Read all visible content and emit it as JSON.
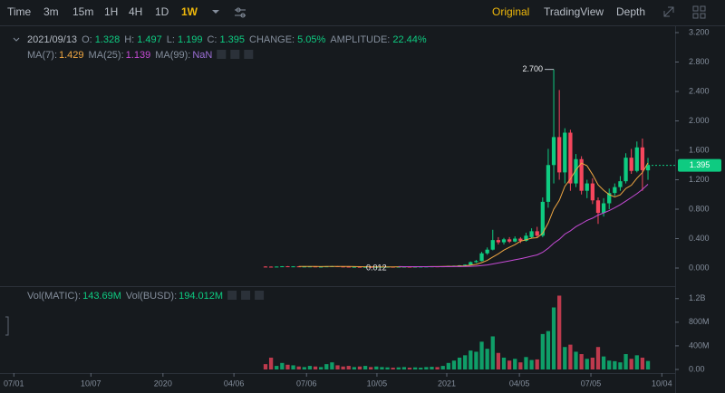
{
  "toolbar": {
    "intervals": [
      "Time",
      "3m",
      "15m",
      "1H",
      "4H",
      "1D",
      "1W"
    ],
    "views": [
      "Original",
      "TradingView",
      "Depth"
    ]
  },
  "chart_data": {
    "type": "candlestick",
    "header": {
      "date": "2021/09/13",
      "open_label": "O:",
      "high_label": "H:",
      "low_label": "L:",
      "close_label": "C:",
      "change_label": "CHANGE:",
      "change": "5.05%",
      "amplitude_label": "AMPLITUDE:",
      "amplitude": "22.44%"
    },
    "up_color": "#0ecb81",
    "down_color": "#f6465d",
    "xlim": [
      -47.9,
      73.9
    ],
    "xticks": [
      {
        "value": -45.4,
        "label": "07/01"
      },
      {
        "value": -31.5,
        "label": "10/07"
      },
      {
        "value": -18.5,
        "label": "2020"
      },
      {
        "value": -5.7,
        "label": "04/06"
      },
      {
        "value": 7.4,
        "label": "07/06"
      },
      {
        "value": 20.1,
        "label": "10/05"
      },
      {
        "value": 32.7,
        "label": "2021"
      },
      {
        "value": 45.8,
        "label": "04/05"
      },
      {
        "value": 58.7,
        "label": "07/05"
      },
      {
        "value": 71.5,
        "label": "10/04"
      }
    ],
    "ylim": [
      -0.246,
      3.274
    ],
    "yticks": [
      {
        "value": 0,
        "label": "0.000"
      },
      {
        "value": 0.4,
        "label": "0.400"
      },
      {
        "value": 0.8,
        "label": "0.800"
      },
      {
        "value": 1.2,
        "label": "1.200"
      },
      {
        "value": 1.6,
        "label": "1.600"
      },
      {
        "value": 2,
        "label": "2.000"
      },
      {
        "value": 2.4,
        "label": "2.400"
      },
      {
        "value": 2.8,
        "label": "2.800"
      },
      {
        "value": 3.2,
        "label": "3.200"
      }
    ],
    "max_label": "2.700",
    "min_label": "0.012",
    "open": [
      0.02,
      0.019,
      0.018,
      0.02,
      0.024,
      0.021,
      0.023,
      0.019,
      0.021,
      0.022,
      0.018,
      0.019,
      0.023,
      0.025,
      0.021,
      0.019,
      0.016,
      0.017,
      0.015,
      0.016,
      0.014,
      0.015,
      0.017,
      0.018,
      0.017,
      0.018,
      0.019,
      0.018,
      0.019,
      0.02,
      0.021,
      0.023,
      0.022,
      0.024,
      0.029,
      0.032,
      0.037,
      0.045,
      0.08,
      0.095,
      0.2,
      0.25,
      0.38,
      0.35,
      0.39,
      0.36,
      0.4,
      0.37,
      0.42,
      0.5,
      0.44,
      0.9,
      1.4,
      1.78,
      1.3,
      1.84,
      1.15,
      1.48,
      1.05,
      1.15,
      0.92,
      0.75,
      0.88,
      1.02,
      1.1,
      1.18,
      1.5,
      1.32,
      1.64,
      1.328
    ],
    "high": [
      0.025,
      0.022,
      0.021,
      0.026,
      0.027,
      0.024,
      0.025,
      0.022,
      0.024,
      0.023,
      0.02,
      0.024,
      0.029,
      0.027,
      0.023,
      0.021,
      0.018,
      0.019,
      0.017,
      0.017,
      0.016,
      0.018,
      0.019,
      0.019,
      0.019,
      0.02,
      0.02,
      0.02,
      0.021,
      0.022,
      0.024,
      0.025,
      0.025,
      0.031,
      0.034,
      0.04,
      0.05,
      0.09,
      0.11,
      0.22,
      0.28,
      0.52,
      0.42,
      0.41,
      0.42,
      0.43,
      0.42,
      0.48,
      0.54,
      0.56,
      0.96,
      1.62,
      2.7,
      2.42,
      1.9,
      1.88,
      1.55,
      1.52,
      1.2,
      1.22,
      0.96,
      0.95,
      1.08,
      1.15,
      1.25,
      1.56,
      1.62,
      1.72,
      1.76,
      1.497
    ],
    "low": [
      0.017,
      0.017,
      0.016,
      0.019,
      0.02,
      0.019,
      0.018,
      0.017,
      0.019,
      0.017,
      0.016,
      0.018,
      0.021,
      0.02,
      0.018,
      0.015,
      0.014,
      0.015,
      0.013,
      0.013,
      0.012,
      0.014,
      0.016,
      0.016,
      0.016,
      0.017,
      0.017,
      0.017,
      0.018,
      0.019,
      0.02,
      0.021,
      0.021,
      0.023,
      0.026,
      0.03,
      0.033,
      0.042,
      0.07,
      0.09,
      0.18,
      0.24,
      0.32,
      0.32,
      0.34,
      0.35,
      0.34,
      0.36,
      0.4,
      0.42,
      0.42,
      0.82,
      1.15,
      1.2,
      1.15,
      1.05,
      1.1,
      1.0,
      0.95,
      0.87,
      0.6,
      0.7,
      0.8,
      0.98,
      1.05,
      1.15,
      1.28,
      1.3,
      1.05,
      1.199
    ],
    "close": [
      0.019,
      0.018,
      0.02,
      0.024,
      0.021,
      0.023,
      0.019,
      0.021,
      0.022,
      0.018,
      0.019,
      0.023,
      0.025,
      0.021,
      0.019,
      0.016,
      0.017,
      0.015,
      0.016,
      0.014,
      0.015,
      0.017,
      0.018,
      0.017,
      0.018,
      0.019,
      0.018,
      0.019,
      0.02,
      0.021,
      0.023,
      0.022,
      0.024,
      0.029,
      0.032,
      0.037,
      0.045,
      0.08,
      0.095,
      0.2,
      0.25,
      0.38,
      0.35,
      0.39,
      0.36,
      0.4,
      0.37,
      0.44,
      0.5,
      0.44,
      0.9,
      1.4,
      1.78,
      1.3,
      1.84,
      1.15,
      1.48,
      1.05,
      1.15,
      0.92,
      0.75,
      0.88,
      1.02,
      1.1,
      1.18,
      1.5,
      1.32,
      1.64,
      1.33,
      1.395
    ],
    "ma": [
      {
        "name": "MA(7):",
        "color": "#f0a742",
        "values": [
          null,
          null,
          null,
          null,
          null,
          null,
          0.021,
          0.021,
          0.021,
          0.021,
          0.02,
          0.021,
          0.021,
          0.021,
          0.021,
          0.021,
          0.02,
          0.019,
          0.018,
          0.017,
          0.016,
          0.016,
          0.016,
          0.016,
          0.017,
          0.017,
          0.018,
          0.018,
          0.019,
          0.019,
          0.02,
          0.02,
          0.021,
          0.023,
          0.024,
          0.027,
          0.03,
          0.039,
          0.049,
          0.074,
          0.104,
          0.15,
          0.193,
          0.244,
          0.282,
          0.318,
          0.364,
          0.384,
          0.406,
          0.413,
          0.473,
          0.611,
          0.799,
          0.921,
          1.111,
          1.21,
          1.335,
          1.427,
          1.391,
          1.27,
          1.131,
          1.058,
          0.998,
          0.966,
          0.995,
          1.082,
          1.126,
          1.221,
          1.299,
          1.429
        ]
      },
      {
        "name": "MA(25):",
        "color": "#c64bd6",
        "values": [
          null,
          null,
          null,
          null,
          null,
          null,
          null,
          null,
          null,
          null,
          null,
          null,
          null,
          null,
          null,
          null,
          null,
          null,
          null,
          null,
          null,
          null,
          null,
          null,
          0.02,
          0.019,
          0.019,
          0.019,
          0.019,
          0.019,
          0.019,
          0.019,
          0.019,
          0.019,
          0.02,
          0.02,
          0.021,
          0.023,
          0.026,
          0.033,
          0.042,
          0.056,
          0.069,
          0.083,
          0.097,
          0.112,
          0.126,
          0.143,
          0.162,
          0.179,
          0.214,
          0.268,
          0.338,
          0.39,
          0.462,
          0.506,
          0.563,
          0.603,
          0.648,
          0.678,
          0.72,
          0.75,
          0.78,
          0.82,
          0.86,
          0.91,
          0.96,
          1.01,
          1.07,
          1.139
        ]
      },
      {
        "name": "MA(99):",
        "color": "#9c6fd6",
        "label": "NaN"
      }
    ],
    "volume": {
      "name": "Vol(MATIC):",
      "last_label": "143.69M",
      "quote_name": "Vol(BUSD):",
      "quote_value": "194.012M",
      "ylim": [
        0,
        1380
      ],
      "yticks": [
        {
          "value": 0,
          "label": "0.00"
        },
        {
          "value": 400,
          "label": "400M"
        },
        {
          "value": 800,
          "label": "800M"
        },
        {
          "value": 1200,
          "label": "1.2B"
        }
      ],
      "values": [
        90,
        200,
        60,
        110,
        80,
        70,
        50,
        40,
        60,
        50,
        40,
        90,
        120,
        70,
        50,
        60,
        40,
        50,
        60,
        40,
        50,
        40,
        35,
        30,
        35,
        40,
        30,
        35,
        30,
        40,
        45,
        40,
        60,
        110,
        150,
        200,
        240,
        320,
        300,
        470,
        350,
        560,
        280,
        200,
        150,
        180,
        120,
        210,
        160,
        170,
        600,
        650,
        1050,
        1250,
        380,
        420,
        300,
        260,
        180,
        200,
        380,
        220,
        150,
        140,
        120,
        260,
        180,
        240,
        200,
        143.69
      ]
    }
  }
}
